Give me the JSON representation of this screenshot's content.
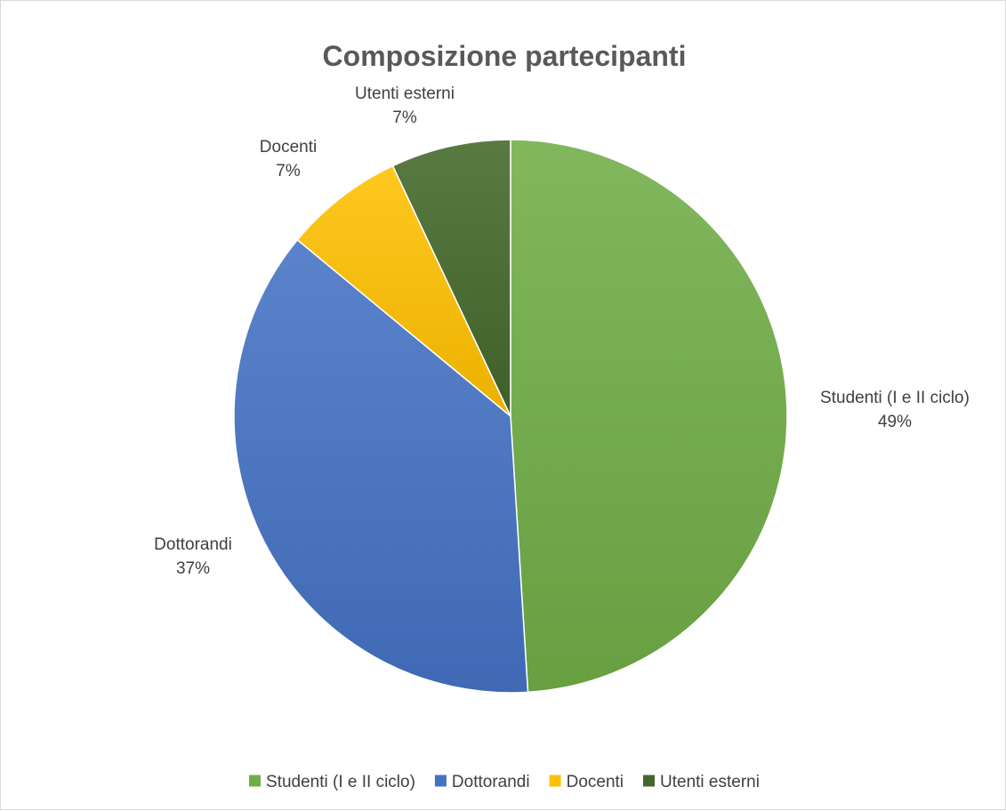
{
  "chart_data": {
    "type": "pie",
    "title": "Composizione partecipanti",
    "slices": [
      {
        "name": "Studenti (I e II ciclo)",
        "value": 49,
        "label": "49%",
        "color": "#70ad47"
      },
      {
        "name": "Dottorandi",
        "value": 37,
        "label": "37%",
        "color": "#4472c4"
      },
      {
        "name": "Docenti",
        "value": 7,
        "label": "7%",
        "color": "#ffc000"
      },
      {
        "name": "Utenti esterni",
        "value": 7,
        "label": "7%",
        "color": "#43682b"
      }
    ],
    "start_angle_deg": 0,
    "direction": "clockwise",
    "legend_position": "bottom",
    "data_labels": "outside"
  }
}
